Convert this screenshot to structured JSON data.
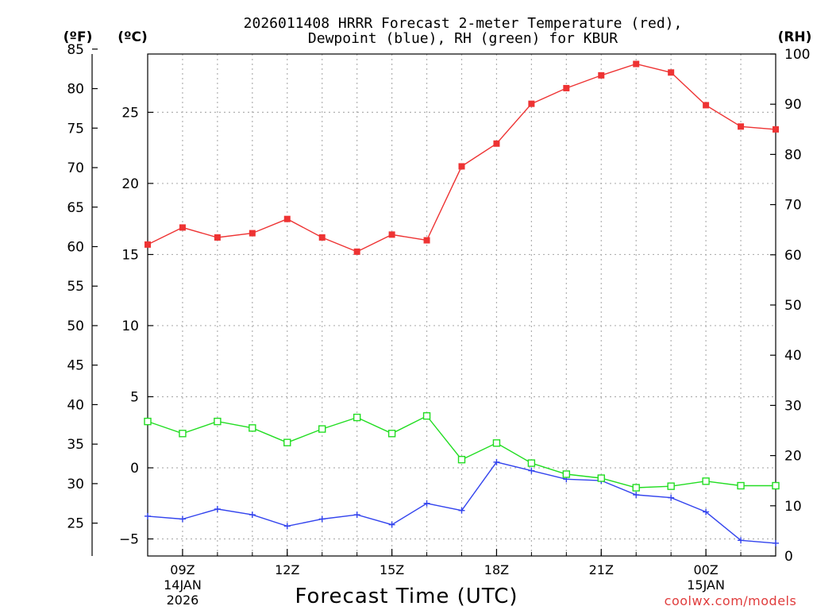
{
  "chart_data": {
    "type": "line",
    "title_line1": "2026011408 HRRR Forecast 2-meter Temperature (red),",
    "title_line2": "Dewpoint (blue), RH (green) for KBUR",
    "xlabel": "Forecast Time (UTC)",
    "watermark": "coolwx.com/models",
    "unit_f": "(ºF)",
    "unit_c": "(ºC)",
    "unit_rh": "(RH)",
    "x_hours": [
      8,
      9,
      10,
      11,
      12,
      13,
      14,
      15,
      16,
      17,
      18,
      19,
      20,
      21,
      22,
      23,
      24,
      25,
      26
    ],
    "x_range": [
      8,
      26
    ],
    "x_ticks": [
      {
        "hour": 9,
        "label": "09Z",
        "sub1": "14JAN",
        "sub2": "2026"
      },
      {
        "hour": 12,
        "label": "12Z",
        "sub1": "",
        "sub2": ""
      },
      {
        "hour": 15,
        "label": "15Z",
        "sub1": "",
        "sub2": ""
      },
      {
        "hour": 18,
        "label": "18Z",
        "sub1": "",
        "sub2": ""
      },
      {
        "hour": 21,
        "label": "21Z",
        "sub1": "",
        "sub2": ""
      },
      {
        "hour": 24,
        "label": "00Z",
        "sub1": "15JAN",
        "sub2": ""
      }
    ],
    "c_range": [
      -6.2,
      29.1
    ],
    "c_ticks": [
      -5,
      0,
      5,
      10,
      15,
      20,
      25
    ],
    "f_ticks": [
      25,
      30,
      35,
      40,
      45,
      50,
      55,
      60,
      65,
      70,
      75,
      80,
      85
    ],
    "rh_range": [
      0,
      100
    ],
    "rh_ticks": [
      0,
      10,
      20,
      30,
      40,
      50,
      60,
      70,
      80,
      90,
      100
    ],
    "series": [
      {
        "name": "Temperature",
        "axis": "C",
        "color": "#ee3333",
        "marker": "filled-square",
        "values": [
          15.7,
          16.9,
          16.2,
          16.5,
          17.5,
          16.2,
          15.2,
          16.4,
          16.0,
          21.2,
          22.8,
          25.6,
          26.7,
          27.6,
          28.4,
          27.8,
          25.5,
          24.0,
          23.8
        ]
      },
      {
        "name": "Dewpoint",
        "axis": "C",
        "color": "#3344ee",
        "marker": "plus",
        "values": [
          -3.4,
          -3.6,
          -2.9,
          -3.3,
          -4.1,
          -3.6,
          -3.3,
          -4.0,
          -2.5,
          -3.0,
          0.4,
          -0.2,
          -0.8,
          -0.9,
          -1.9,
          -2.1,
          -3.1,
          -5.1,
          -5.3
        ]
      },
      {
        "name": "RH",
        "axis": "RH",
        "color": "#22dd22",
        "marker": "open-square",
        "values": [
          26.8,
          24.4,
          26.8,
          25.5,
          22.6,
          25.3,
          27.6,
          24.4,
          27.9,
          19.2,
          22.5,
          18.5,
          16.3,
          15.5,
          13.6,
          13.9,
          14.9,
          14.0,
          14.0
        ]
      }
    ]
  }
}
